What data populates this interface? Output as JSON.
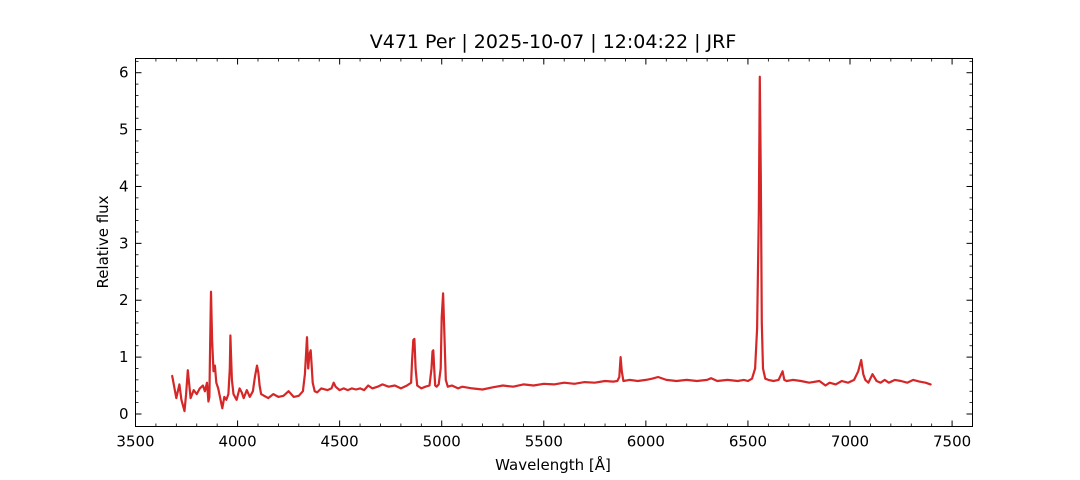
{
  "chart_data": {
    "type": "line",
    "title": "V471 Per | 2025-10-07 | 12:04:22 | JRF",
    "xlabel": "Wavelength [Å]",
    "ylabel": "Relative flux",
    "xlim": [
      3500,
      7600
    ],
    "ylim": [
      -0.22,
      6.25
    ],
    "x_ticks": [
      3500,
      4000,
      4500,
      5000,
      5500,
      6000,
      6500,
      7000,
      7500
    ],
    "y_ticks": [
      0,
      1,
      2,
      3,
      4,
      5,
      6
    ],
    "grid": false,
    "legend": "none",
    "line_color": "#d62728",
    "series": [
      {
        "x": [
          3680,
          3700,
          3715,
          3725,
          3740,
          3748,
          3756,
          3770,
          3785,
          3800,
          3815,
          3830,
          3840,
          3850,
          3857,
          3862,
          3866,
          3870,
          3875,
          3882,
          3889,
          3896,
          3905,
          3915,
          3925,
          3935,
          3945,
          3955,
          3962,
          3965,
          3968,
          3972,
          3980,
          3995,
          4010,
          4020,
          4030,
          4045,
          4060,
          4075,
          4085,
          4095,
          4102,
          4108,
          4115,
          4130,
          4150,
          4175,
          4200,
          4225,
          4250,
          4275,
          4300,
          4320,
          4330,
          4336,
          4340,
          4346,
          4352,
          4358,
          4362,
          4368,
          4378,
          4390,
          4410,
          4440,
          4460,
          4471,
          4480,
          4500,
          4520,
          4540,
          4560,
          4580,
          4600,
          4620,
          4640,
          4660,
          4686,
          4710,
          4740,
          4770,
          4800,
          4830,
          4850,
          4855,
          4861,
          4866,
          4872,
          4880,
          4900,
          4920,
          4940,
          4950,
          4955,
          4959,
          4963,
          4968,
          4975,
          4985,
          4995,
          5000,
          5007,
          5013,
          5020,
          5030,
          5050,
          5080,
          5100,
          5150,
          5200,
          5250,
          5300,
          5350,
          5400,
          5450,
          5500,
          5550,
          5600,
          5650,
          5700,
          5750,
          5800,
          5840,
          5860,
          5870,
          5876,
          5882,
          5890,
          5920,
          5960,
          6000,
          6030,
          6060,
          6100,
          6150,
          6200,
          6250,
          6300,
          6320,
          6350,
          6400,
          6450,
          6480,
          6500,
          6520,
          6535,
          6545,
          6553,
          6558,
          6563,
          6568,
          6574,
          6585,
          6600,
          6625,
          6650,
          6670,
          6678,
          6690,
          6720,
          6760,
          6800,
          6850,
          6880,
          6900,
          6930,
          6960,
          6990,
          7020,
          7040,
          7055,
          7065,
          7075,
          7090,
          7110,
          7130,
          7150,
          7170,
          7190,
          7220,
          7250,
          7280,
          7310,
          7340,
          7370,
          7395
        ],
        "y": [
          0.67,
          0.28,
          0.52,
          0.25,
          0.05,
          0.35,
          0.77,
          0.28,
          0.42,
          0.35,
          0.45,
          0.5,
          0.4,
          0.55,
          0.22,
          0.3,
          1.3,
          2.15,
          1.3,
          0.75,
          0.85,
          0.55,
          0.45,
          0.28,
          0.1,
          0.3,
          0.25,
          0.35,
          0.8,
          1.38,
          1.05,
          0.6,
          0.35,
          0.25,
          0.45,
          0.38,
          0.28,
          0.42,
          0.3,
          0.4,
          0.65,
          0.85,
          0.72,
          0.5,
          0.35,
          0.32,
          0.28,
          0.35,
          0.3,
          0.32,
          0.4,
          0.3,
          0.32,
          0.4,
          0.7,
          1.1,
          1.35,
          0.8,
          1.05,
          1.12,
          0.9,
          0.55,
          0.4,
          0.38,
          0.45,
          0.42,
          0.45,
          0.55,
          0.48,
          0.42,
          0.45,
          0.42,
          0.45,
          0.43,
          0.45,
          0.42,
          0.5,
          0.45,
          0.48,
          0.52,
          0.48,
          0.5,
          0.45,
          0.5,
          0.55,
          0.95,
          1.3,
          1.32,
          0.8,
          0.5,
          0.45,
          0.48,
          0.5,
          0.8,
          1.1,
          1.12,
          0.8,
          0.5,
          0.48,
          0.52,
          0.8,
          1.7,
          2.12,
          1.4,
          0.6,
          0.48,
          0.5,
          0.45,
          0.48,
          0.45,
          0.43,
          0.47,
          0.5,
          0.48,
          0.52,
          0.5,
          0.53,
          0.52,
          0.55,
          0.53,
          0.56,
          0.55,
          0.58,
          0.57,
          0.58,
          0.65,
          1.0,
          0.75,
          0.58,
          0.6,
          0.58,
          0.6,
          0.62,
          0.65,
          0.6,
          0.58,
          0.6,
          0.58,
          0.6,
          0.63,
          0.58,
          0.6,
          0.58,
          0.6,
          0.58,
          0.62,
          0.8,
          1.5,
          3.5,
          5.93,
          4.2,
          1.6,
          0.8,
          0.62,
          0.6,
          0.58,
          0.6,
          0.75,
          0.6,
          0.58,
          0.6,
          0.58,
          0.55,
          0.58,
          0.5,
          0.55,
          0.52,
          0.58,
          0.55,
          0.6,
          0.75,
          0.95,
          0.7,
          0.6,
          0.55,
          0.7,
          0.58,
          0.55,
          0.6,
          0.55,
          0.6,
          0.58,
          0.55,
          0.6,
          0.57,
          0.55,
          0.52
        ]
      }
    ]
  }
}
